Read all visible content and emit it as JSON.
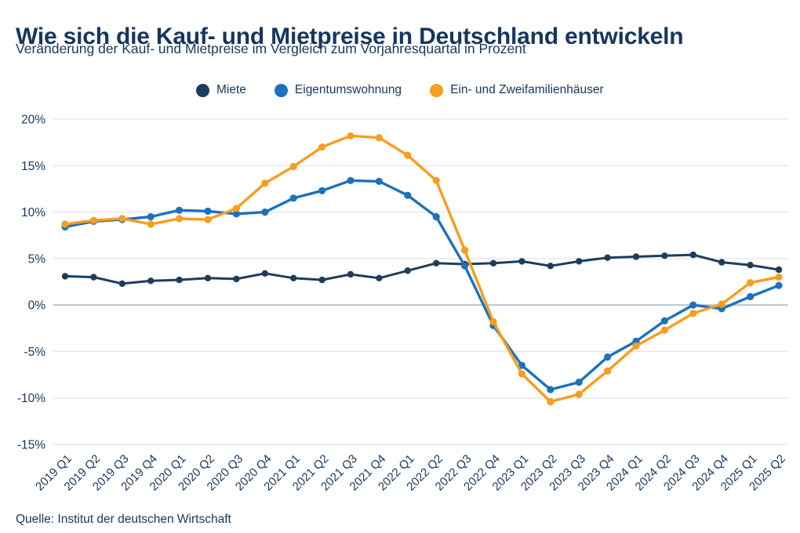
{
  "header": {
    "title": "Wie sich die Kauf- und Mietpreise in Deutschland entwickeln",
    "subtitle": "Veränderung der Kauf- und Mietpreise im Vergleich zum Vorjahresquartal in Prozent"
  },
  "legend": [
    {
      "label": "Miete",
      "color": "#1d3d5c"
    },
    {
      "label": "Eigentumswohnung",
      "color": "#1d71bd"
    },
    {
      "label": "Ein- und Zweifamilienhäuser",
      "color": "#f89d1e"
    }
  ],
  "footer": {
    "source": "Quelle: Institut der deutschen Wirtschaft"
  },
  "colors": {
    "text_navy": "#17365d",
    "gridline": "#e2e5e9",
    "zero_line": "#b9c7d3",
    "background": "#ffffff"
  },
  "chart_data": {
    "type": "line",
    "title": "Wie sich die Kauf- und Mietpreise in Deutschland entwickeln",
    "subtitle": "Veränderung der Kauf- und Mietpreise im Vergleich zum Vorjahresquartal in Prozent",
    "x": [
      "2019 Q1",
      "2019 Q2",
      "2019 Q3",
      "2019 Q4",
      "2020 Q1",
      "2020 Q2",
      "2020 Q3",
      "2020 Q4",
      "2021 Q1",
      "2021 Q2",
      "2021 Q3",
      "2021 Q4",
      "2022 Q1",
      "2022 Q2",
      "2022 Q3",
      "2022 Q4",
      "2023 Q1",
      "2023 Q2",
      "2023 Q3",
      "2023 Q4",
      "2024 Q1",
      "2024 Q2",
      "2024 Q3",
      "2024 Q4",
      "2025 Q1",
      "2025 Q2"
    ],
    "series": [
      {
        "name": "Miete",
        "color": "#1d3d5c",
        "values": [
          3.1,
          3.0,
          2.3,
          2.6,
          2.7,
          2.9,
          2.8,
          3.4,
          2.9,
          2.7,
          3.3,
          2.9,
          3.7,
          4.5,
          4.4,
          4.5,
          4.7,
          4.2,
          4.7,
          5.1,
          5.2,
          5.3,
          5.4,
          4.6,
          4.3,
          3.8
        ]
      },
      {
        "name": "Eigentumswohnung",
        "color": "#1d71bd",
        "values": [
          8.4,
          9.0,
          9.2,
          9.5,
          10.2,
          10.1,
          9.8,
          10.0,
          11.5,
          12.3,
          13.4,
          13.3,
          11.8,
          9.5,
          4.2,
          -2.2,
          -6.5,
          -9.1,
          -8.3,
          -5.6,
          -3.9,
          -1.7,
          0.0,
          -0.4,
          0.9,
          2.1
        ]
      },
      {
        "name": "Ein- und Zweifamilienhäuser",
        "color": "#f89d1e",
        "values": [
          8.7,
          9.1,
          9.3,
          8.7,
          9.3,
          9.2,
          10.4,
          13.1,
          14.9,
          17.0,
          18.2,
          18.0,
          16.1,
          13.4,
          5.9,
          -1.8,
          -7.4,
          -10.4,
          -9.6,
          -7.1,
          -4.4,
          -2.7,
          -0.9,
          0.1,
          2.4,
          3.0
        ]
      }
    ],
    "yticks": [
      20,
      15,
      10,
      5,
      0,
      -5,
      -10,
      -15
    ],
    "ytick_suffix": "%",
    "ylim": [
      -15,
      20
    ],
    "grid": true,
    "zero_baseline": true,
    "legend_position": "top",
    "xlabel": "",
    "ylabel": ""
  }
}
